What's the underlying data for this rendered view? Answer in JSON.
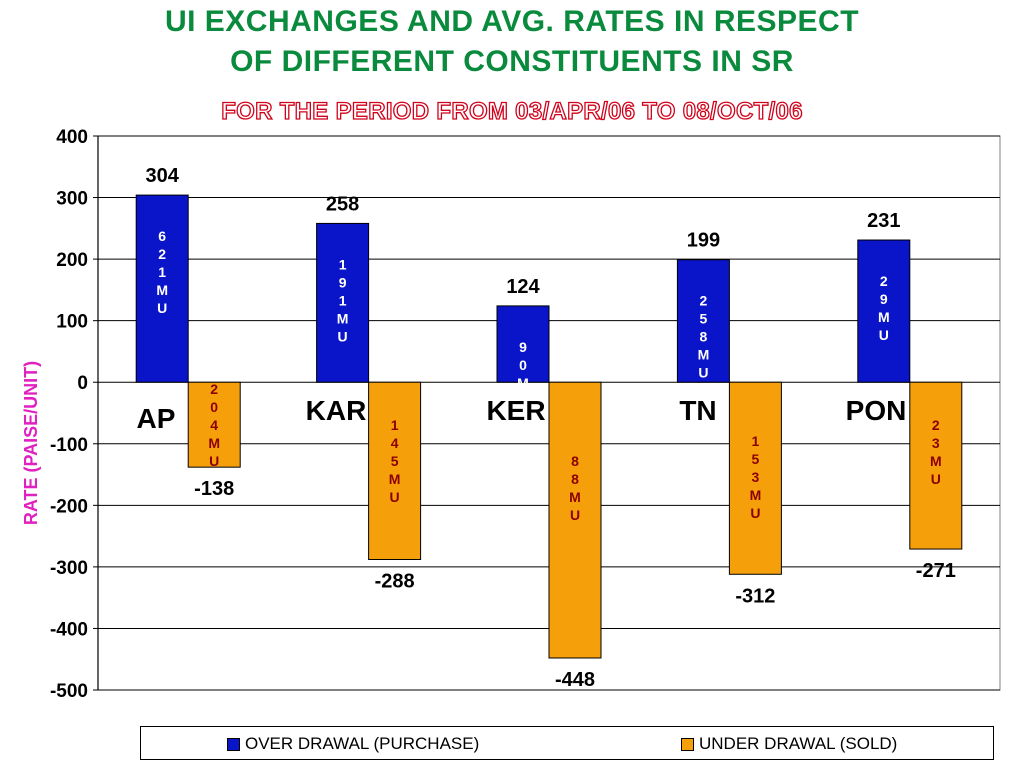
{
  "title_line1": "UI EXCHANGES AND AVG. RATES IN RESPECT",
  "title_line2": "OF DIFFERENT CONSTITUENTS IN SR",
  "subtitle": "FOR THE PERIOD FROM 03/APR/06 TO 08/OCT/06",
  "colors": {
    "over": "#0a14c8",
    "under": "#f5a00a",
    "title": "#0a8a3c",
    "ylabel": "#e020c0",
    "under_text": "#8b0000"
  },
  "chart_data": {
    "type": "bar",
    "title": "UI EXCHANGES AND AVG. RATES IN RESPECT OF DIFFERENT CONSTITUENTS IN SR",
    "subtitle": "FOR THE PERIOD FROM 03/APR/06 TO 08/OCT/06",
    "ylabel": "RATE (PAISE/UNIT)",
    "xlabel": "",
    "ylim": [
      -500,
      400
    ],
    "yticks": [
      400,
      300,
      200,
      100,
      0,
      -100,
      -200,
      -300,
      -400,
      -500
    ],
    "grid": true,
    "legend_position": "bottom",
    "categories": [
      "AP",
      "KAR",
      "KER",
      "TN",
      "PON"
    ],
    "series": [
      {
        "name": "OVER DRAWAL (PURCHASE)",
        "values": [
          304,
          258,
          124,
          199,
          231
        ],
        "bar_labels": [
          "621MU",
          "191MU",
          "90MU",
          "258MU",
          "29MU"
        ]
      },
      {
        "name": "UNDER DRAWAL (SOLD)",
        "values": [
          -138,
          -288,
          -448,
          -312,
          -271
        ],
        "bar_labels": [
          "204MU",
          "145MU",
          "88MU",
          "153MU",
          "23MU"
        ]
      }
    ]
  }
}
